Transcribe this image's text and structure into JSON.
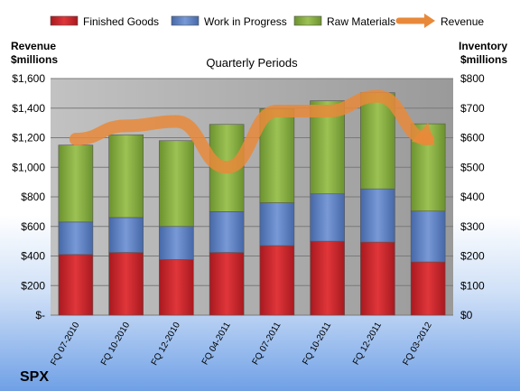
{
  "chart_data": {
    "type": "bar",
    "stacked": true,
    "title": "Quarterly Periods",
    "company": "SPX",
    "left_axis": {
      "label_line1": "Revenue",
      "label_line2": "$millions",
      "range": [
        0,
        1600
      ],
      "ticks": [
        "$-",
        "$200",
        "$400",
        "$600",
        "$800",
        "$1,000",
        "$1,200",
        "$1,400",
        "$1,600"
      ]
    },
    "right_axis": {
      "label_line1": "Inventory",
      "label_line2": "$millions",
      "range": [
        0,
        800
      ],
      "ticks": [
        "$0",
        "$100",
        "$200",
        "$300",
        "$400",
        "$500",
        "$600",
        "$700",
        "$800"
      ]
    },
    "categories": [
      "FQ 07-2010",
      "FQ 10-2010",
      "FQ 12-2010",
      "FQ 04-2011",
      "FQ 07-2011",
      "FQ 10-2011",
      "FQ 12-2011",
      "FQ 03-2012"
    ],
    "series": [
      {
        "name": "Finished Goods",
        "axis": "right",
        "color": "#c0262b",
        "values": [
          205,
          212,
          188,
          212,
          235,
          250,
          247,
          180
        ]
      },
      {
        "name": "Work in Progress",
        "axis": "right",
        "color": "#5b7fc0",
        "values": [
          110,
          118,
          112,
          138,
          145,
          160,
          180,
          172
        ]
      },
      {
        "name": "Raw Materials",
        "axis": "right",
        "color": "#7ea43c",
        "values": [
          260,
          280,
          290,
          295,
          318,
          315,
          325,
          295
        ]
      },
      {
        "name": "Revenue",
        "axis": "left",
        "color": "#e8893a",
        "type": "line",
        "values": [
          1190,
          1280,
          1310,
          1000,
          1380,
          1380,
          1480,
          1190
        ]
      }
    ],
    "grid": true,
    "legend_position": "top"
  }
}
